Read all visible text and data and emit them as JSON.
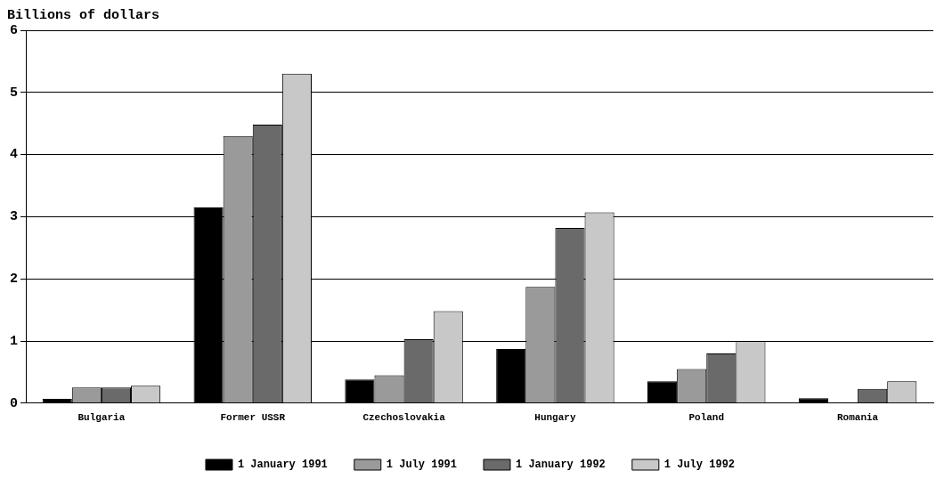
{
  "chart_data": {
    "type": "bar",
    "ylabel": "Billions of dollars",
    "categories": [
      "Bulgaria",
      "Former USSR",
      "Czechoslovakia",
      "Hungary",
      "Poland",
      "Romania"
    ],
    "series": [
      {
        "name": "1 January 1991",
        "color": "#000000",
        "values": [
          0.07,
          3.15,
          0.38,
          0.87,
          0.35,
          0.08
        ]
      },
      {
        "name": "1 July 1991",
        "color": "#9a9a9a",
        "values": [
          0.25,
          4.3,
          0.45,
          1.87,
          0.55,
          null
        ]
      },
      {
        "name": "1 January 1992",
        "color": "#6a6a6a",
        "values": [
          0.25,
          4.48,
          1.03,
          2.82,
          0.8,
          0.23
        ]
      },
      {
        "name": "1 July 1992",
        "color": "#c8c8c8",
        "values": [
          0.28,
          5.3,
          1.48,
          3.07,
          1.0,
          0.35
        ]
      }
    ],
    "ylim": [
      0,
      6
    ],
    "yticks": [
      0,
      1,
      2,
      3,
      4,
      5,
      6
    ],
    "grid": "y",
    "legend": "bottom"
  }
}
